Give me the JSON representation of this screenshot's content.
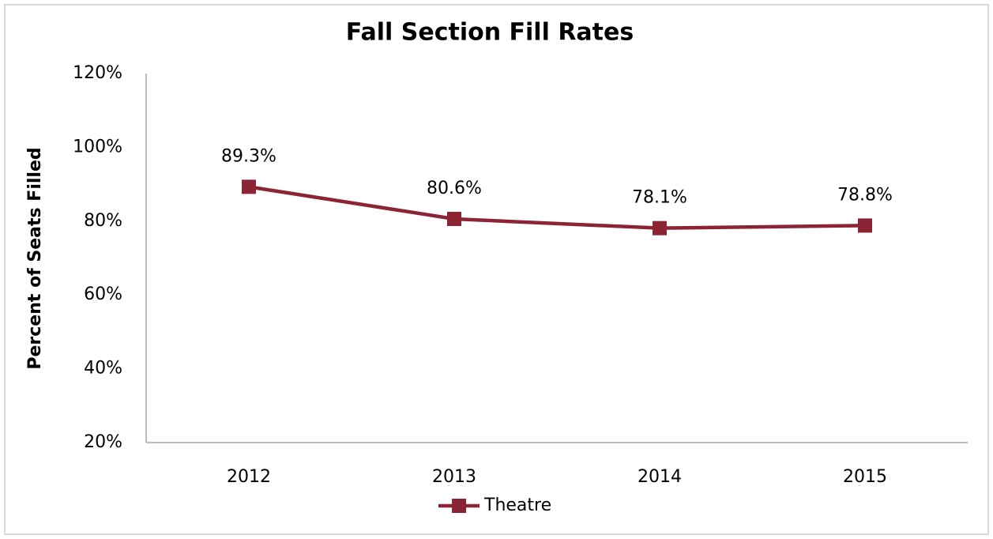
{
  "chart_data": {
    "type": "line",
    "title": "Fall Section Fill Rates",
    "y_label": "Percent of Seats Filled",
    "categories": [
      "2012",
      "2013",
      "2014",
      "2015"
    ],
    "series": [
      {
        "name": "Theatre",
        "color": "#8b2535",
        "values": [
          89.3,
          80.6,
          78.1,
          78.8
        ],
        "value_labels": [
          "89.3%",
          "80.6%",
          "78.1%",
          "78.8%"
        ]
      }
    ],
    "ylim": [
      20,
      120
    ],
    "yticks": [
      {
        "value": 20,
        "label": "20%"
      },
      {
        "value": 40,
        "label": "40%"
      },
      {
        "value": 60,
        "label": "60%"
      },
      {
        "value": 80,
        "label": "80%"
      },
      {
        "value": 100,
        "label": "100%"
      },
      {
        "value": 120,
        "label": "120%"
      }
    ],
    "grid": false,
    "legend": "bottom"
  }
}
